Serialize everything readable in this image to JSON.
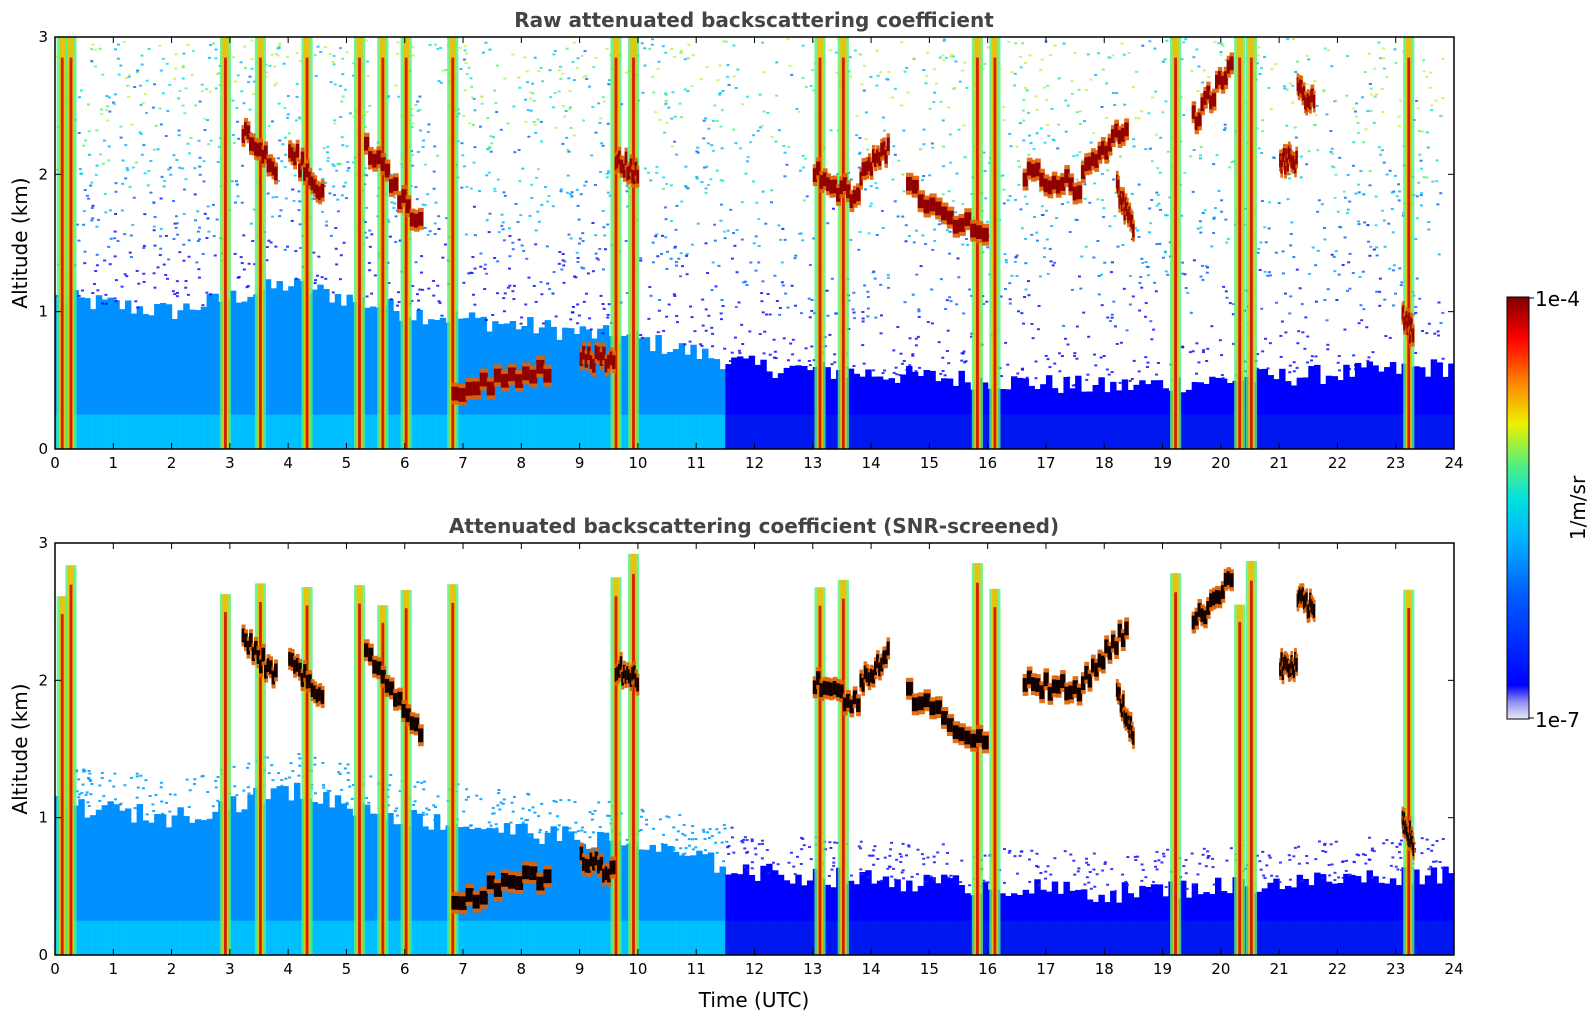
{
  "chart_data": [
    {
      "type": "heatmap",
      "title": "Raw attenuated backscattering coefficient",
      "xlabel": "",
      "ylabel": "Altitude (km)",
      "xlim": [
        0,
        24
      ],
      "ylim": [
        0,
        3
      ],
      "xticks": [
        "0",
        "1",
        "2",
        "3",
        "4",
        "5",
        "6",
        "7",
        "8",
        "9",
        "10",
        "11",
        "12",
        "13",
        "14",
        "15",
        "16",
        "17",
        "18",
        "19",
        "20",
        "21",
        "22",
        "23",
        "24"
      ],
      "yticks": [
        "0",
        "1",
        "2",
        "3"
      ],
      "features": {
        "boundary_layer_top_km": [
          {
            "t": 0,
            "h": 1.1
          },
          {
            "t": 2,
            "h": 1.0
          },
          {
            "t": 4,
            "h": 1.2
          },
          {
            "t": 6,
            "h": 1.0
          },
          {
            "t": 8,
            "h": 0.9
          },
          {
            "t": 10,
            "h": 0.8
          },
          {
            "t": 12,
            "h": 0.6
          },
          {
            "t": 14,
            "h": 0.55
          },
          {
            "t": 16,
            "h": 0.5
          },
          {
            "t": 18,
            "h": 0.45
          },
          {
            "t": 20,
            "h": 0.5
          },
          {
            "t": 22,
            "h": 0.55
          },
          {
            "t": 24,
            "h": 0.6
          }
        ],
        "precipitation_columns_utc": [
          0.1,
          0.25,
          2.9,
          3.5,
          4.3,
          5.2,
          5.6,
          6.0,
          6.8,
          9.6,
          9.9,
          13.1,
          13.5,
          15.8,
          16.1,
          19.2,
          20.3,
          20.5,
          23.2
        ],
        "cloud_segments": [
          {
            "t0": 3.2,
            "t1": 3.8,
            "h0": 2.3,
            "h1": 2.0
          },
          {
            "t0": 4.0,
            "t1": 4.6,
            "h0": 2.2,
            "h1": 1.8
          },
          {
            "t0": 5.3,
            "t1": 6.3,
            "h0": 2.2,
            "h1": 1.6
          },
          {
            "t0": 6.8,
            "t1": 8.5,
            "h0": 0.4,
            "h1": 0.6
          },
          {
            "t0": 9.0,
            "t1": 9.6,
            "h0": 0.7,
            "h1": 0.6
          },
          {
            "t0": 9.6,
            "t1": 10.0,
            "h0": 2.1,
            "h1": 2.0
          },
          {
            "t0": 13.0,
            "t1": 13.8,
            "h0": 2.0,
            "h1": 1.8
          },
          {
            "t0": 13.8,
            "t1": 14.3,
            "h0": 2.0,
            "h1": 2.2
          },
          {
            "t0": 14.6,
            "t1": 16.0,
            "h0": 1.9,
            "h1": 1.5
          },
          {
            "t0": 16.6,
            "t1": 17.6,
            "h0": 2.0,
            "h1": 1.9
          },
          {
            "t0": 17.6,
            "t1": 18.4,
            "h0": 2.0,
            "h1": 2.4
          },
          {
            "t0": 18.2,
            "t1": 18.5,
            "h0": 1.9,
            "h1": 1.6
          },
          {
            "t0": 19.5,
            "t1": 20.2,
            "h0": 2.4,
            "h1": 2.8
          },
          {
            "t0": 21.0,
            "t1": 21.3,
            "h0": 2.1,
            "h1": 2.1
          },
          {
            "t0": 21.3,
            "t1": 21.6,
            "h0": 2.6,
            "h1": 2.5
          },
          {
            "t0": 23.1,
            "t1": 23.3,
            "h0": 1.0,
            "h1": 0.8
          }
        ]
      }
    },
    {
      "type": "heatmap",
      "title": "Attenuated backscattering coefficient (SNR-screened)",
      "xlabel": "Time (UTC)",
      "ylabel": "Altitude (km)",
      "xlim": [
        0,
        24
      ],
      "ylim": [
        0,
        3
      ],
      "xticks": [
        "0",
        "1",
        "2",
        "3",
        "4",
        "5",
        "6",
        "7",
        "8",
        "9",
        "10",
        "11",
        "12",
        "13",
        "14",
        "15",
        "16",
        "17",
        "18",
        "19",
        "20",
        "21",
        "22",
        "23",
        "24"
      ],
      "yticks": [
        "0",
        "1",
        "2",
        "3"
      ],
      "screened": true
    }
  ],
  "colorbar": {
    "label": "1/m/sr",
    "min_label": "1e-7",
    "max_label": "1e-4",
    "scale": "log",
    "colormap": [
      "#e8e8f8",
      "#0000ff",
      "#00a0ff",
      "#00e0e0",
      "#50f080",
      "#f0f000",
      "#ff8000",
      "#ff0000",
      "#800000"
    ]
  }
}
